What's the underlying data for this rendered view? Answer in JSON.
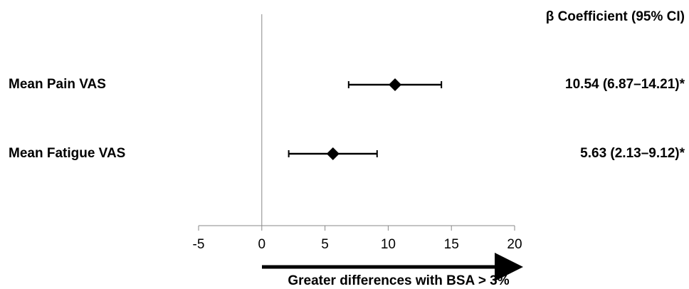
{
  "chart_data": {
    "type": "forest",
    "column_header": "β Coefficient (95% CI)",
    "categories": [
      "Mean Pain VAS",
      "Mean Fatigue VAS"
    ],
    "values": [
      10.54,
      5.63
    ],
    "lower": [
      6.87,
      2.13
    ],
    "upper": [
      14.21,
      9.12
    ],
    "value_labels": [
      "10.54 (6.87–14.21)*",
      "5.63 (2.13–9.12)*"
    ],
    "xlim": [
      -5,
      20
    ],
    "xticks": [
      -5,
      0,
      5,
      10,
      15,
      20
    ],
    "annotation": "Greater differences with BSA > 3%",
    "color": "#000000"
  }
}
